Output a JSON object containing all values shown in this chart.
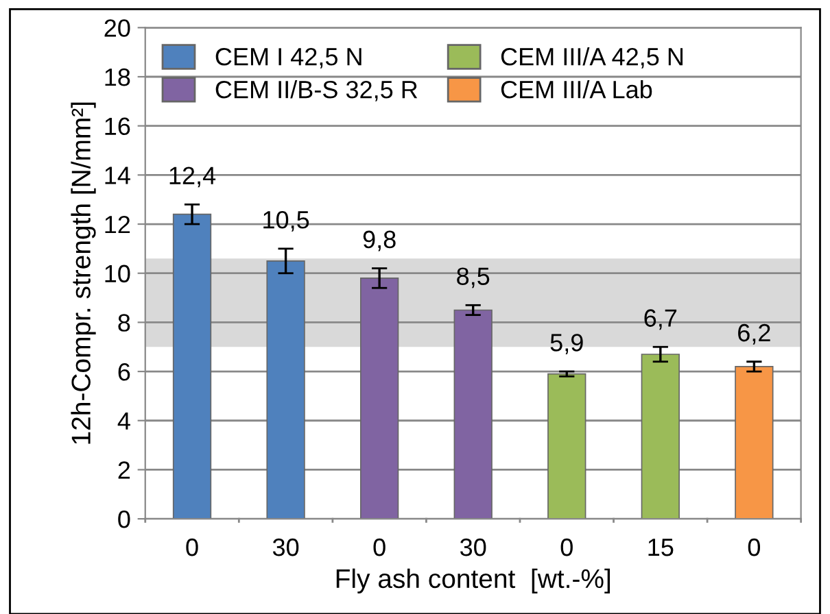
{
  "chart_data": {
    "type": "bar",
    "xlabel": "Fly ash content  [wt.-%]",
    "ylabel": "12h-Compr. strength [N/mm²]",
    "categories": [
      "0",
      "30",
      "0",
      "30",
      "0",
      "15",
      "0"
    ],
    "series": [
      {
        "name": "CEM I 42,5 N",
        "color": "#4f81bd",
        "values": [
          12.4,
          10.5,
          null,
          null,
          null,
          null,
          null
        ],
        "errors": [
          0.4,
          0.5,
          null,
          null,
          null,
          null,
          null
        ],
        "value_labels": [
          "12,4",
          "10,5",
          null,
          null,
          null,
          null,
          null
        ]
      },
      {
        "name": "CEM II/B-S 32,5 R",
        "color": "#8064a2",
        "values": [
          null,
          null,
          9.8,
          8.5,
          null,
          null,
          null
        ],
        "errors": [
          null,
          null,
          0.4,
          0.2,
          null,
          null,
          null
        ],
        "value_labels": [
          null,
          null,
          "9,8",
          "8,5",
          null,
          null,
          null
        ]
      },
      {
        "name": "CEM III/A 42,5 N",
        "color": "#9bbb59",
        "values": [
          null,
          null,
          null,
          null,
          5.9,
          6.7,
          null
        ],
        "errors": [
          null,
          null,
          null,
          null,
          0.1,
          0.3,
          null
        ],
        "value_labels": [
          null,
          null,
          null,
          null,
          "5,9",
          "6,7",
          null
        ]
      },
      {
        "name": "CEM III/A Lab",
        "color": "#f79646",
        "values": [
          null,
          null,
          null,
          null,
          null,
          null,
          6.2
        ],
        "errors": [
          null,
          null,
          null,
          null,
          null,
          null,
          0.2
        ],
        "value_labels": [
          null,
          null,
          null,
          null,
          null,
          null,
          "6,2"
        ]
      }
    ],
    "bands": [
      {
        "axis": "y",
        "from": 7,
        "to": 10.6,
        "color": "#d9d9d9"
      }
    ],
    "ylim": [
      0,
      20
    ],
    "yticks": [
      0,
      2,
      4,
      6,
      8,
      10,
      12,
      14,
      16,
      18,
      20
    ],
    "grid": "y",
    "legend": "top left"
  }
}
